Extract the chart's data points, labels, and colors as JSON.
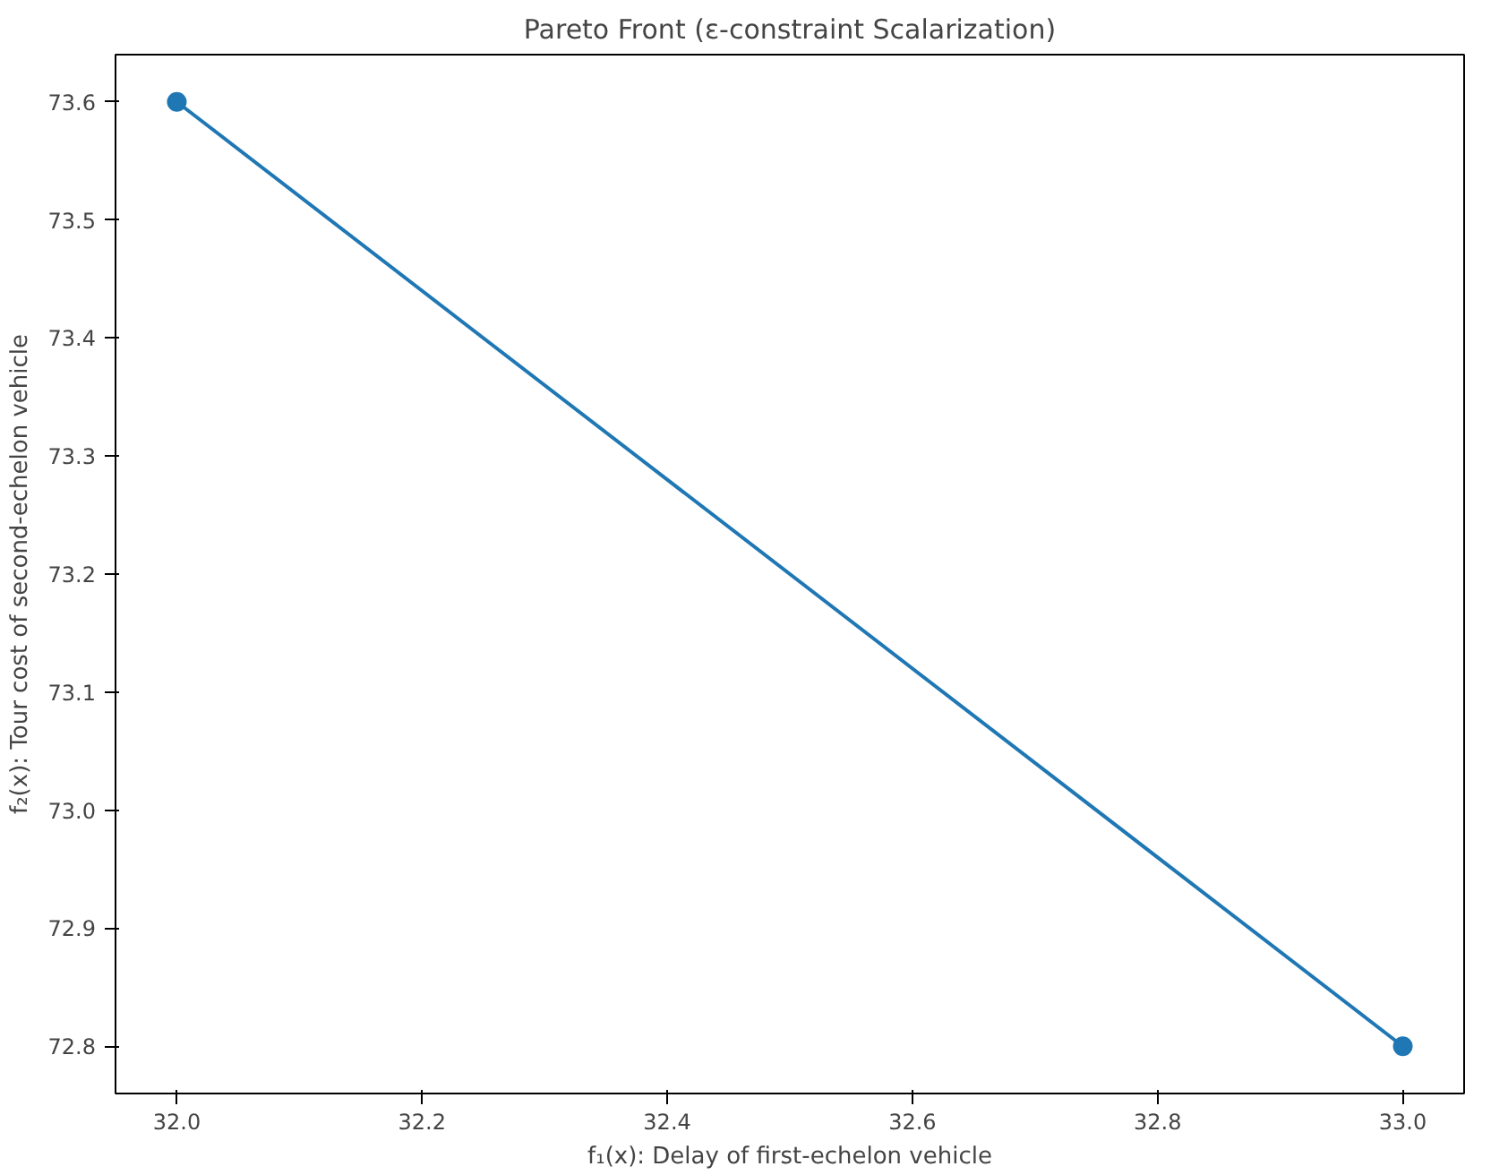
{
  "chart_data": {
    "type": "line",
    "title": "Pareto Front (ε-constraint Scalarization)",
    "xlabel": "f₁(x): Delay of first-echelon vehicle",
    "ylabel": "f₂(x): Tour cost of second-echelon vehicle",
    "x": [
      32,
      33
    ],
    "series": [
      {
        "color": "#1f77b4",
        "values": [
          73.6,
          72.8
        ]
      }
    ],
    "xlim": [
      31.95,
      33.05
    ],
    "ylim": [
      72.76,
      73.64
    ],
    "xticks": [
      {
        "value": 32,
        "label": "32.0"
      },
      32.2,
      32.4,
      32.6,
      32.8,
      {
        "value": 33,
        "label": "33.0"
      }
    ],
    "yticks": [
      72.8,
      72.9,
      {
        "value": 73,
        "label": "73.0"
      },
      73.1,
      73.2,
      73.3,
      73.4,
      73.5,
      73.6
    ],
    "marker": "circle",
    "line_style": "solid",
    "grid": false
  }
}
